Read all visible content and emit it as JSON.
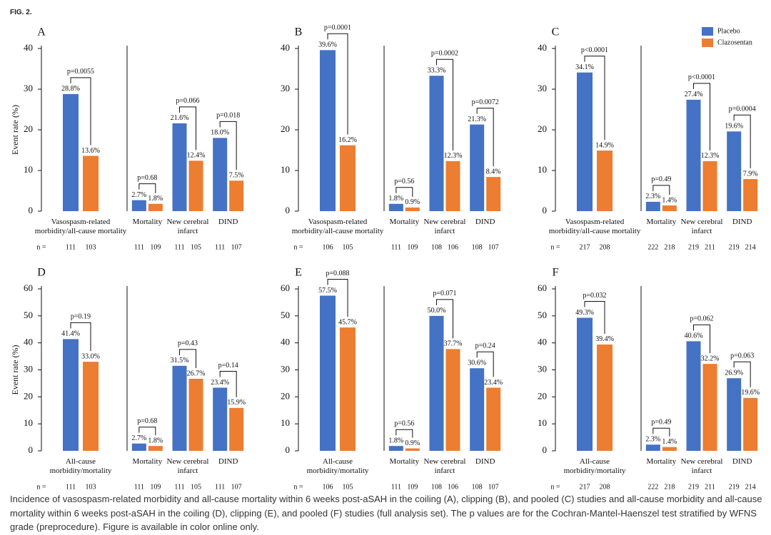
{
  "figure_label": "FIG. 2.",
  "caption": "Incidence of vasospasm-related morbidity and all-cause mortality within 6 weeks post-aSAH in the coiling (A), clipping (B), and pooled (C) studies and all-cause morbidity and all-cause mortality within 6 weeks post-aSAH in the coiling (D), clipping (E), and pooled (F) studies (full analysis set). The p values are for the Cochran-Mantel-Haenszel test stratified by WFNS grade (preprocedure). Figure is available in color online only.",
  "chart_data": [
    {
      "type": "bar",
      "title": "A",
      "ylabel": "Event rate (%)",
      "categories": [
        "Vasospasm-related\nmorbidity/all-cause mortality"
      ],
      "ylim": [
        0,
        40
      ],
      "yticks": [
        0,
        10,
        20,
        30,
        40
      ],
      "n_label": "n =",
      "p_values": [
        "p=0.0055"
      ],
      "series": [
        {
          "name": "Placebo",
          "color": "#4472c4",
          "values": [
            28.8
          ],
          "value_labels": [
            "28.8%"
          ],
          "n": [
            111
          ]
        },
        {
          "name": "Clazosentan",
          "color": "#ed7d31",
          "values": [
            13.6
          ],
          "value_labels": [
            "13.6%"
          ],
          "n": [
            103
          ]
        }
      ]
    },
    {
      "type": "bar",
      "categories": [
        "Mortality",
        "New cerebral\ninfarct",
        "DIND"
      ],
      "ylim": [
        0,
        40
      ],
      "p_values": [
        "p=0.68",
        "p=0.066",
        "p=0.018"
      ],
      "series": [
        {
          "name": "Placebo",
          "color": "#4472c4",
          "values": [
            2.7,
            21.6,
            18.0
          ],
          "value_labels": [
            "2.7%",
            "21.6%",
            "18.0%"
          ],
          "n": [
            111,
            111,
            111
          ]
        },
        {
          "name": "Clazosentan",
          "color": "#ed7d31",
          "values": [
            1.8,
            12.4,
            7.5
          ],
          "value_labels": [
            "1.8%",
            "12.4%",
            "7.5%"
          ],
          "n": [
            109,
            105,
            107
          ]
        }
      ]
    },
    {
      "type": "bar",
      "title": "B",
      "categories": [
        "Vasospasm-related\nmorbidity/all-cause mortality"
      ],
      "ylim": [
        0,
        40
      ],
      "yticks": [
        0,
        10,
        20,
        30,
        40
      ],
      "n_label": "n =",
      "p_values": [
        "p=0.0001"
      ],
      "series": [
        {
          "name": "Placebo",
          "color": "#4472c4",
          "values": [
            39.6
          ],
          "value_labels": [
            "39.6%"
          ],
          "n": [
            106
          ]
        },
        {
          "name": "Clazosentan",
          "color": "#ed7d31",
          "values": [
            16.2
          ],
          "value_labels": [
            "16.2%"
          ],
          "n": [
            105
          ]
        }
      ]
    },
    {
      "type": "bar",
      "categories": [
        "Mortality",
        "New cerebral\ninfarct",
        "DIND"
      ],
      "ylim": [
        0,
        40
      ],
      "p_values": [
        "p=0.56",
        "p=0.0002",
        "p=0.0072"
      ],
      "series": [
        {
          "name": "Placebo",
          "color": "#4472c4",
          "values": [
            1.8,
            33.3,
            21.3
          ],
          "value_labels": [
            "1.8%",
            "33.3%",
            "21.3%"
          ],
          "n": [
            111,
            108,
            108
          ]
        },
        {
          "name": "Clazosentan",
          "color": "#ed7d31",
          "values": [
            0.9,
            12.3,
            8.4
          ],
          "value_labels": [
            "0.9%",
            "12.3%",
            "8.4%"
          ],
          "n": [
            109,
            106,
            107
          ]
        }
      ]
    },
    {
      "type": "bar",
      "title": "C",
      "categories": [
        "Vasospasm-related\nmorbidity/all-cause mortality"
      ],
      "ylim": [
        0,
        40
      ],
      "yticks": [
        0,
        10,
        20,
        30,
        40
      ],
      "n_label": "n =",
      "p_values": [
        "p<0.0001"
      ],
      "series": [
        {
          "name": "Placebo",
          "color": "#4472c4",
          "values": [
            34.1
          ],
          "value_labels": [
            "34.1%"
          ],
          "n": [
            217
          ]
        },
        {
          "name": "Clazosentan",
          "color": "#ed7d31",
          "values": [
            14.9
          ],
          "value_labels": [
            "14.9%"
          ],
          "n": [
            208
          ]
        }
      ]
    },
    {
      "type": "bar",
      "categories": [
        "Mortality",
        "New cerebral\ninfarct",
        "DIND"
      ],
      "ylim": [
        0,
        40
      ],
      "legend": "upper right",
      "p_values": [
        "p=0.49",
        "p<0.0001",
        "p=0.0004"
      ],
      "series": [
        {
          "name": "Placebo",
          "color": "#4472c4",
          "values": [
            2.3,
            27.4,
            19.6
          ],
          "value_labels": [
            "2.3%",
            "27.4%",
            "19.6%"
          ],
          "n": [
            222,
            219,
            219
          ]
        },
        {
          "name": "Clazosentan",
          "color": "#ed7d31",
          "values": [
            1.4,
            12.3,
            7.9
          ],
          "value_labels": [
            "1.4%",
            "12.3%",
            "7.9%"
          ],
          "n": [
            218,
            211,
            214
          ]
        }
      ]
    },
    {
      "type": "bar",
      "title": "D",
      "ylabel": "Event rate (%)",
      "categories": [
        "All-cause\nmorbidity/mortality"
      ],
      "ylim": [
        0,
        60
      ],
      "yticks": [
        0,
        10,
        20,
        30,
        40,
        50,
        60
      ],
      "n_label": "n =",
      "p_values": [
        "p=0.19"
      ],
      "series": [
        {
          "name": "Placebo",
          "color": "#4472c4",
          "values": [
            41.4
          ],
          "value_labels": [
            "41.4%"
          ],
          "n": [
            111
          ]
        },
        {
          "name": "Clazosentan",
          "color": "#ed7d31",
          "values": [
            33.0
          ],
          "value_labels": [
            "33.0%"
          ],
          "n": [
            103
          ]
        }
      ]
    },
    {
      "type": "bar",
      "categories": [
        "Mortality",
        "New cerebral\ninfarct",
        "DIND"
      ],
      "ylim": [
        0,
        60
      ],
      "p_values": [
        "p=0.68",
        "p=0.43",
        "p=0.14"
      ],
      "series": [
        {
          "name": "Placebo",
          "color": "#4472c4",
          "values": [
            2.7,
            31.5,
            23.4
          ],
          "value_labels": [
            "2.7%",
            "31.5%",
            "23.4%"
          ],
          "n": [
            111,
            111,
            111
          ]
        },
        {
          "name": "Clazosentan",
          "color": "#ed7d31",
          "values": [
            1.8,
            26.7,
            15.9
          ],
          "value_labels": [
            "1.8%",
            "26.7%",
            "15.9%"
          ],
          "n": [
            109,
            105,
            107
          ]
        }
      ]
    },
    {
      "type": "bar",
      "title": "E",
      "categories": [
        "All-cause\nmorbidity/mortality"
      ],
      "ylim": [
        0,
        60
      ],
      "yticks": [
        0,
        10,
        20,
        30,
        40,
        50,
        60
      ],
      "n_label": "n =",
      "p_values": [
        "p=0.088"
      ],
      "series": [
        {
          "name": "Placebo",
          "color": "#4472c4",
          "values": [
            57.5
          ],
          "value_labels": [
            "57.5%"
          ],
          "n": [
            106
          ]
        },
        {
          "name": "Clazosentan",
          "color": "#ed7d31",
          "values": [
            45.7
          ],
          "value_labels": [
            "45.7%"
          ],
          "n": [
            105
          ]
        }
      ]
    },
    {
      "type": "bar",
      "categories": [
        "Mortality",
        "New cerebral\ninfarct",
        "DIND"
      ],
      "ylim": [
        0,
        60
      ],
      "p_values": [
        "p=0.56",
        "p=0.071",
        "p=0.24"
      ],
      "series": [
        {
          "name": "Placebo",
          "color": "#4472c4",
          "values": [
            1.8,
            50.0,
            30.6
          ],
          "value_labels": [
            "1.8%",
            "50.0%",
            "30.6%"
          ],
          "n": [
            111,
            108,
            108
          ]
        },
        {
          "name": "Clazosentan",
          "color": "#ed7d31",
          "values": [
            0.9,
            37.7,
            23.4
          ],
          "value_labels": [
            "0.9%",
            "37.7%",
            "23.4%"
          ],
          "n": [
            109,
            106,
            107
          ]
        }
      ]
    },
    {
      "type": "bar",
      "title": "F",
      "categories": [
        "All-cause\nmorbidity/mortality"
      ],
      "ylim": [
        0,
        60
      ],
      "yticks": [
        0,
        10,
        20,
        30,
        40,
        50,
        60
      ],
      "n_label": "n =",
      "p_values": [
        "p=0.032"
      ],
      "series": [
        {
          "name": "Placebo",
          "color": "#4472c4",
          "values": [
            49.3
          ],
          "value_labels": [
            "49.3%"
          ],
          "n": [
            217
          ]
        },
        {
          "name": "Clazosentan",
          "color": "#ed7d31",
          "values": [
            39.4
          ],
          "value_labels": [
            "39.4%"
          ],
          "n": [
            208
          ]
        }
      ]
    },
    {
      "type": "bar",
      "categories": [
        "Mortality",
        "New cerebral\ninfarct",
        "DIND"
      ],
      "ylim": [
        0,
        60
      ],
      "p_values": [
        "p=0.49",
        "p=0.062",
        "p=0.063"
      ],
      "series": [
        {
          "name": "Placebo",
          "color": "#4472c4",
          "values": [
            2.3,
            40.6,
            26.9
          ],
          "value_labels": [
            "2.3%",
            "40.6%",
            "26.9%"
          ],
          "n": [
            222,
            219,
            219
          ]
        },
        {
          "name": "Clazosentan",
          "color": "#ed7d31",
          "values": [
            1.4,
            32.2,
            19.6
          ],
          "value_labels": [
            "1.4%",
            "32.2%",
            "19.6%"
          ],
          "n": [
            218,
            211,
            214
          ]
        }
      ]
    }
  ]
}
